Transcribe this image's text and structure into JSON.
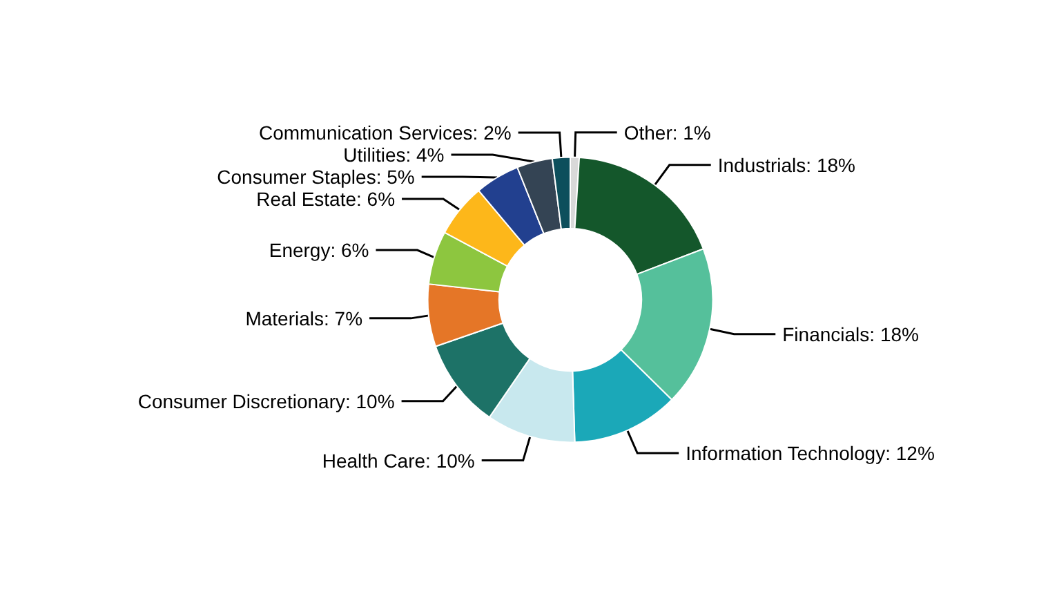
{
  "chart_data": {
    "type": "donut",
    "categories": [
      "Other",
      "Industrials",
      "Financials",
      "Information Technology",
      "Health Care",
      "Consumer Discretionary",
      "Materials",
      "Energy",
      "Real Estate",
      "Consumer Staples",
      "Utilities",
      "Communication Services"
    ],
    "values": [
      1,
      18,
      18,
      12,
      10,
      10,
      7,
      6,
      6,
      5,
      4,
      2
    ],
    "value_labels": [
      "1%",
      "18%",
      "18%",
      "12%",
      "10%",
      "10%",
      "7%",
      "6%",
      "6%",
      "5%",
      "4%",
      "2%"
    ],
    "colors": [
      "#d9d9d9",
      "#14572b",
      "#55c09b",
      "#1ba8b8",
      "#c8e8ee",
      "#1d7267",
      "#e57627",
      "#8dc63f",
      "#fdb71a",
      "#22408f",
      "#344454",
      "#0d4f5c"
    ],
    "legend": false
  }
}
